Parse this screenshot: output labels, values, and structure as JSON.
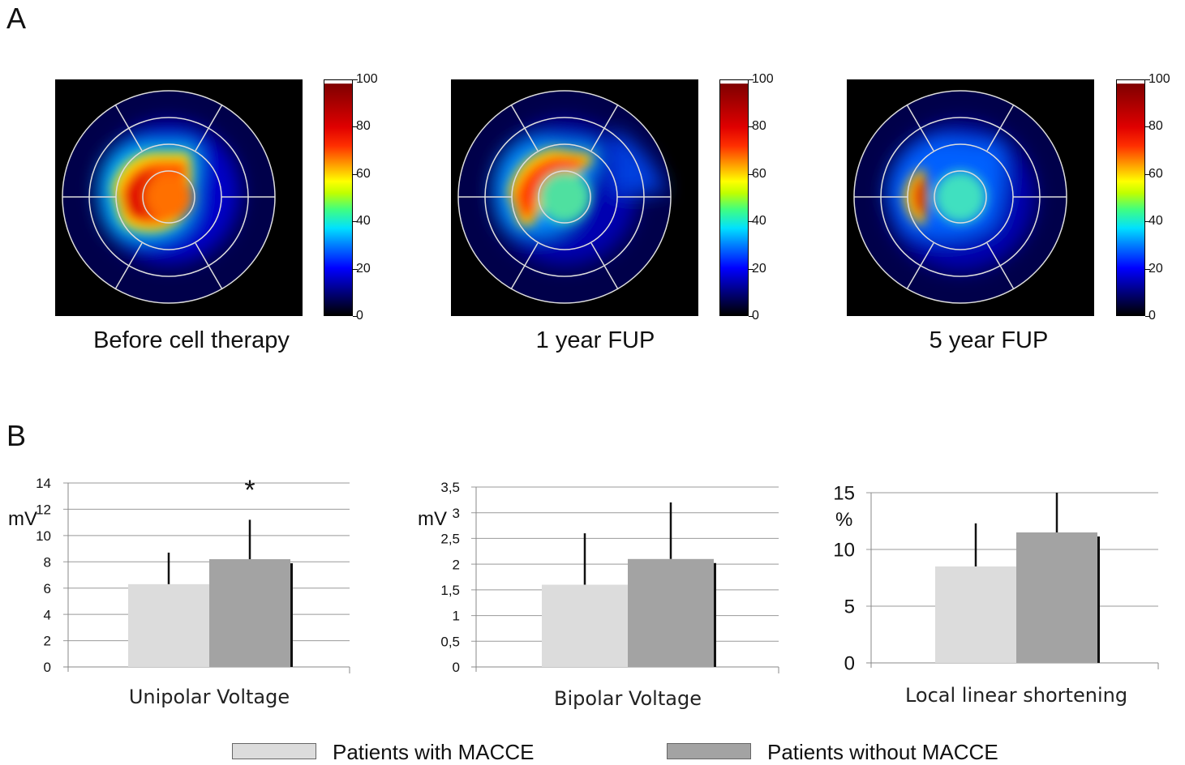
{
  "panel_a_label": "A",
  "panel_b_label": "B",
  "colorbar_ticks": [
    "100",
    "80",
    "60",
    "40",
    "20",
    "0"
  ],
  "colorbar_range": [
    0,
    100
  ],
  "polar_maps": [
    {
      "caption": "Before cell therapy"
    },
    {
      "caption": "1 year FUP"
    },
    {
      "caption": "5 year FUP"
    }
  ],
  "legend": [
    {
      "label": "Patients with MACCE",
      "color": "#dcdcdc"
    },
    {
      "label": "Patients without MACCE",
      "color": "#a3a3a3"
    }
  ],
  "chart_data": [
    {
      "type": "bar",
      "categories": [
        "Unipolar Voltage"
      ],
      "ylabel": "mV",
      "ylim": [
        0,
        14
      ],
      "yticks": [
        "0",
        "2",
        "4",
        "6",
        "8",
        "10",
        "12",
        "14"
      ],
      "grid": true,
      "series": [
        {
          "name": "Patients with MACCE",
          "values": [
            6.3
          ],
          "error": [
            2.4
          ],
          "color": "#dcdcdc"
        },
        {
          "name": "Patients without MACCE",
          "values": [
            8.2
          ],
          "error": [
            3.0
          ],
          "color": "#a3a3a3"
        }
      ],
      "annotations": [
        "*"
      ]
    },
    {
      "type": "bar",
      "categories": [
        "Bipolar Voltage"
      ],
      "ylabel": "mV",
      "ylim": [
        0,
        3.5
      ],
      "yticks": [
        "0",
        "0,5",
        "1",
        "1,5",
        "2",
        "2,5",
        "3",
        "3,5"
      ],
      "grid": true,
      "series": [
        {
          "name": "Patients with MACCE",
          "values": [
            1.6
          ],
          "error": [
            1.0
          ],
          "color": "#dcdcdc"
        },
        {
          "name": "Patients without MACCE",
          "values": [
            2.1
          ],
          "error": [
            1.1
          ],
          "color": "#a3a3a3"
        }
      ],
      "annotations": []
    },
    {
      "type": "bar",
      "categories": [
        "Local linear shortening"
      ],
      "ylabel": "%",
      "ylim": [
        0,
        15
      ],
      "yticks": [
        "0",
        "5",
        "10",
        "15"
      ],
      "grid": true,
      "series": [
        {
          "name": "Patients with MACCE",
          "values": [
            8.5
          ],
          "error": [
            3.8
          ],
          "color": "#dcdcdc"
        },
        {
          "name": "Patients without MACCE",
          "values": [
            11.5
          ],
          "error": [
            3.5
          ],
          "color": "#a3a3a3"
        }
      ],
      "annotations": []
    }
  ]
}
